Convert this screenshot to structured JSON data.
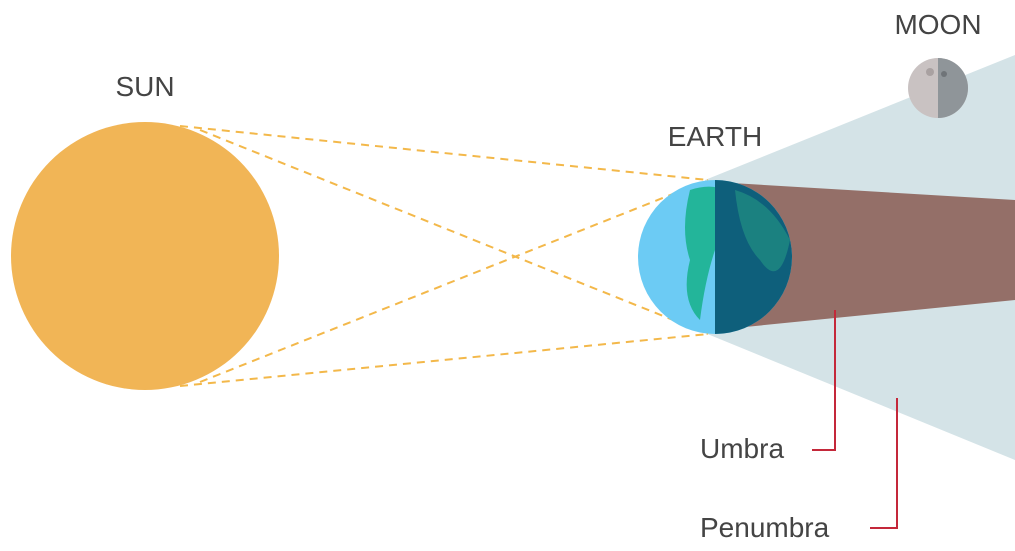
{
  "labels": {
    "sun": "SUN",
    "earth": "EARTH",
    "moon": "MOON",
    "umbra": "Umbra",
    "penumbra": "Penumbra"
  }
}
